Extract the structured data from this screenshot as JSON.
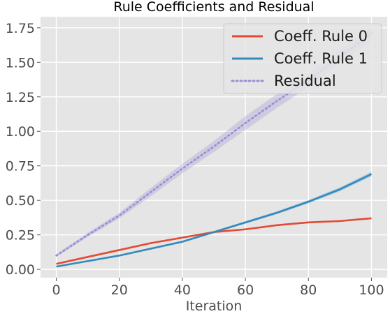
{
  "chart_data": {
    "type": "line",
    "title": "Rule Coefficients and Residual",
    "xlabel": "Iteration",
    "ylabel": "",
    "xlim": [
      -5,
      105
    ],
    "ylim": [
      -0.06,
      1.83
    ],
    "xticks": [
      0,
      20,
      40,
      60,
      80,
      100
    ],
    "yticks": [
      0.0,
      0.25,
      0.5,
      0.75,
      1.0,
      1.25,
      1.5,
      1.75
    ],
    "xtick_labels": [
      "0",
      "20",
      "40",
      "60",
      "80",
      "100"
    ],
    "ytick_labels": [
      "0.00",
      "0.25",
      "0.50",
      "0.75",
      "1.00",
      "1.25",
      "1.50",
      "1.75"
    ],
    "grid": true,
    "background": "#e5e5e5",
    "legend_position": "top-right",
    "x": [
      0,
      10,
      20,
      30,
      40,
      50,
      60,
      70,
      80,
      90,
      100
    ],
    "series": [
      {
        "name": "Coeff. Rule 0",
        "color": "#e24a33",
        "style": "solid",
        "values": [
          0.04,
          0.09,
          0.14,
          0.19,
          0.23,
          0.27,
          0.29,
          0.32,
          0.34,
          0.35,
          0.37
        ],
        "band": [
          0.005,
          0.005,
          0.005,
          0.005,
          0.005,
          0.006,
          0.006,
          0.006,
          0.006,
          0.006,
          0.006
        ]
      },
      {
        "name": "Coeff. Rule 1",
        "color": "#348abd",
        "style": "solid",
        "values": [
          0.02,
          0.06,
          0.1,
          0.15,
          0.2,
          0.27,
          0.34,
          0.41,
          0.49,
          0.58,
          0.69
        ],
        "band": [
          0.004,
          0.004,
          0.005,
          0.006,
          0.007,
          0.008,
          0.009,
          0.01,
          0.012,
          0.014,
          0.016
        ]
      },
      {
        "name": "Residual",
        "color": "#988ed5",
        "style": "dotted",
        "values": [
          0.1,
          0.25,
          0.39,
          0.56,
          0.73,
          0.89,
          1.06,
          1.22,
          1.37,
          1.54,
          1.71
        ],
        "band": [
          0.01,
          0.015,
          0.02,
          0.03,
          0.035,
          0.04,
          0.05,
          0.05,
          0.05,
          0.05,
          0.05
        ]
      }
    ]
  }
}
